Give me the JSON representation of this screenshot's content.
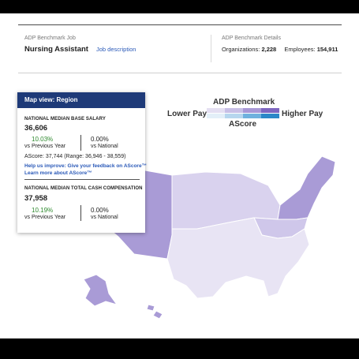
{
  "header": {
    "job_label": "ADP Benchmark Job",
    "job_title": "Nursing Assistant",
    "job_link": "Job description",
    "details_label": "ADP Benchmark Details",
    "organizations_label": "Organizations:",
    "organizations_value": "2,228",
    "employees_label": "Employees:",
    "employees_value": "154,911"
  },
  "legend": {
    "title": "ADP Benchmark",
    "lower": "Lower Pay",
    "higher": "Higher Pay",
    "ascore": "AScore",
    "colors_top": [
      "#e4dff2",
      "#c8bfe6",
      "#a897d6",
      "#7e66c0"
    ],
    "colors_bottom": [
      "#e3eff8",
      "#b6d6ee",
      "#6fb1de",
      "#2b88c8"
    ]
  },
  "map": {
    "colors": {
      "light": "#e8e4f4",
      "medium": "#d7d0ec",
      "dark": "#a99bd6",
      "border": "#ffffff"
    }
  },
  "panel": {
    "header": "Map view: Region",
    "base": {
      "title": "NATIONAL MEDIAN BASE SALARY",
      "value": "36,606",
      "vs_prev_pct": "10.03%",
      "vs_prev_label": "vs Previous Year",
      "vs_nat_pct": "0.00%",
      "vs_nat_label": "vs National",
      "ascore": "AScore: 37,744 (Range: 36,946 - 38,559)",
      "feedback_link": "Help us improve: Give your feedback on AScore™",
      "learn_link": "Learn more about AScore™"
    },
    "total": {
      "title": "NATIONAL MEDIAN TOTAL CASH COMPENSATION",
      "value": "37,958",
      "vs_prev_pct": "10.19%",
      "vs_prev_label": "vs Previous Year",
      "vs_nat_pct": "0.00%",
      "vs_nat_label": "vs National"
    }
  }
}
